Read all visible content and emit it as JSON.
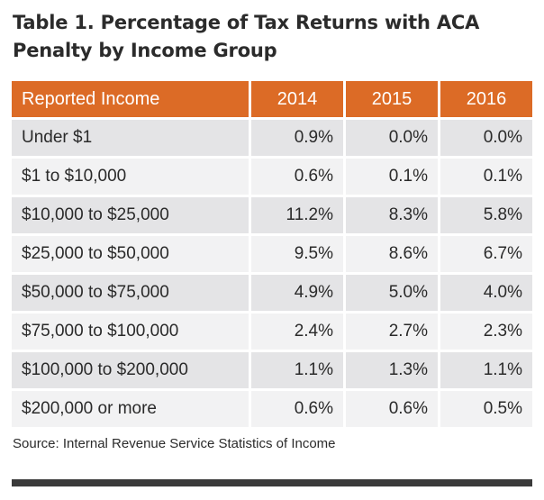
{
  "title": "Table 1. Percentage of Tax Returns with ACA Penalty by Income Group",
  "table": {
    "headers": [
      "Reported Income",
      "2014",
      "2015",
      "2016"
    ],
    "rows": [
      [
        "Under $1",
        "0.9%",
        "0.0%",
        "0.0%"
      ],
      [
        "$1 to $10,000",
        "0.6%",
        "0.1%",
        "0.1%"
      ],
      [
        "$10,000 to $25,000",
        "11.2%",
        "8.3%",
        "5.8%"
      ],
      [
        "$25,000 to $50,000",
        "9.5%",
        "8.6%",
        "6.7%"
      ],
      [
        "$50,000 to $75,000",
        "4.9%",
        "5.0%",
        "4.0%"
      ],
      [
        "$75,000 to $100,000",
        "2.4%",
        "2.7%",
        "2.3%"
      ],
      [
        "$100,000 to $200,000",
        "1.1%",
        "1.3%",
        "1.1%"
      ],
      [
        "$200,000 or more",
        "0.6%",
        "0.6%",
        "0.5%"
      ]
    ]
  },
  "source": "Source: Internal Revenue Service Statistics of Income",
  "colors": {
    "header_bg": "#dc6b26",
    "row_dark": "#e4e4e6",
    "row_light": "#f2f2f3",
    "rule": "#3a3a3a"
  }
}
